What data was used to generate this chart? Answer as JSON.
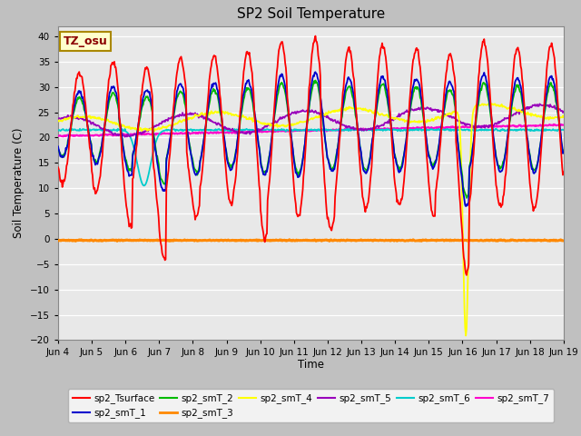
{
  "title": "SP2 Soil Temperature",
  "xlabel": "Time",
  "ylabel": "Soil Temperature (C)",
  "ylim": [
    -20,
    42
  ],
  "yticks": [
    -20,
    -15,
    -10,
    -5,
    0,
    5,
    10,
    15,
    20,
    25,
    30,
    35,
    40
  ],
  "xtick_labels": [
    "Jun 4",
    "Jun 5",
    "Jun 6",
    "Jun 7",
    "Jun 8",
    "Jun 9",
    "Jun 10",
    "Jun 11",
    "Jun 12",
    "Jun 13",
    "Jun 14",
    "Jun 15",
    "Jun 16",
    "Jun 17",
    "Jun 18",
    "Jun 19"
  ],
  "colors": {
    "sp2_Tsurface": "#ff0000",
    "sp2_smT_1": "#0000cc",
    "sp2_smT_2": "#00bb00",
    "sp2_smT_3": "#ff8800",
    "sp2_smT_4": "#ffff00",
    "sp2_smT_5": "#9900bb",
    "sp2_smT_6": "#00cccc",
    "sp2_smT_7": "#ff00cc"
  },
  "annotation_text": "TZ_osu",
  "fig_bg": "#c0c0c0",
  "plot_bg": "#e8e8e8",
  "grid_color": "#ffffff"
}
